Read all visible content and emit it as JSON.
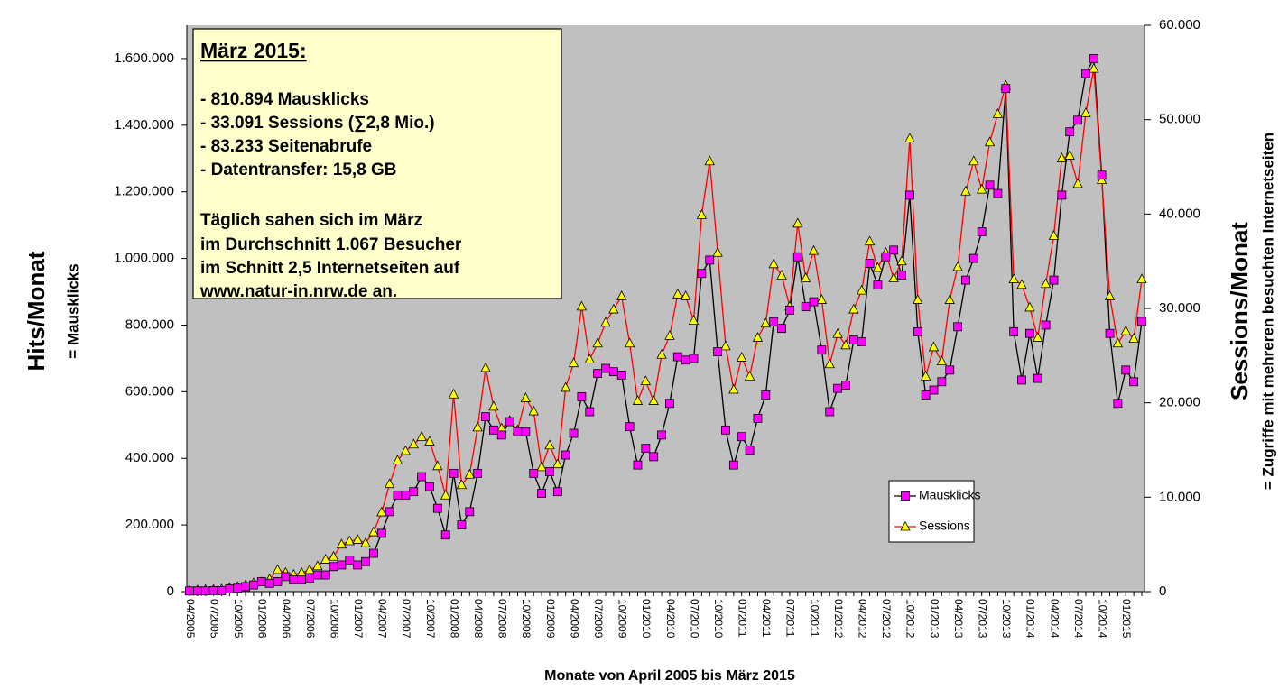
{
  "chart_data": {
    "type": "line",
    "annotation": {
      "title": "März 2015:",
      "lines": [
        "- 810.894 Mausklicks",
        "- 33.091 Sessions (∑2,8 Mio.)",
        "- 83.233 Seitenabrufe",
        "- Datentransfer: 15,8 GB",
        "Täglich sahen sich im März",
        "im Durchschnitt 1.067 Besucher",
        "im Schnitt 2,5 Internetseiten auf",
        "www.natur-in.nrw.de an."
      ]
    },
    "ylabel": "Hits/Monat",
    "ylabel_sub": "= Mausklicks",
    "y2label": "Sessions/Monat",
    "y2label_sub": "= Zugriffe  mit mehreren besuchten Internetseiten",
    "xlabel": "Monate von April 2005 bis März 2015",
    "categories": [
      "04/2005",
      null,
      null,
      "07/2005",
      null,
      null,
      "10/2005",
      null,
      null,
      "01/2006",
      null,
      null,
      "04/2006",
      null,
      null,
      "07/2006",
      null,
      null,
      "10/2006",
      null,
      null,
      "01/2007",
      null,
      null,
      "04/2007",
      null,
      null,
      "07/2007",
      null,
      null,
      "10/2007",
      null,
      null,
      "01/2008",
      null,
      null,
      "04/2008",
      null,
      null,
      "07/2008",
      null,
      null,
      "10/2008",
      null,
      null,
      "01/2009",
      null,
      null,
      "04/2009",
      null,
      null,
      "07/2009",
      null,
      null,
      "10/2009",
      null,
      null,
      "01/2010",
      null,
      null,
      "04/2010",
      null,
      null,
      "07/2010",
      null,
      null,
      "10/2010",
      null,
      null,
      "01/2011",
      null,
      null,
      "04/2011",
      null,
      null,
      "07/2011",
      null,
      null,
      "10/2011",
      null,
      null,
      "01/2012",
      null,
      null,
      "04/2012",
      null,
      null,
      "07/2012",
      null,
      null,
      "10/2012",
      null,
      null,
      "01/2013",
      null,
      null,
      "04/2013",
      null,
      null,
      "07/2013",
      null,
      null,
      "10/2013",
      null,
      null,
      "01/2014",
      null,
      null,
      "04/2014",
      null,
      null,
      "07/2014",
      null,
      null,
      "10/2014",
      null,
      null,
      "01/2015",
      null,
      null
    ],
    "series": [
      {
        "name": "Mausklicks",
        "color": "#000000",
        "marker_color": "#ff00ff",
        "values": [
          2000,
          2000,
          2000,
          3000,
          3000,
          8000,
          10000,
          15000,
          20000,
          30000,
          25000,
          30000,
          45000,
          35000,
          35000,
          40000,
          50000,
          50000,
          75000,
          80000,
          95000,
          80000,
          90000,
          115000,
          175000,
          240000,
          290000,
          290000,
          300000,
          345000,
          315000,
          250000,
          170000,
          355000,
          200000,
          240000,
          355000,
          525000,
          485000,
          470000,
          510000,
          480000,
          480000,
          355000,
          295000,
          360000,
          300000,
          410000,
          475000,
          585000,
          540000,
          655000,
          670000,
          660000,
          650000,
          495000,
          380000,
          430000,
          405000,
          470000,
          565000,
          705000,
          695000,
          700000,
          955000,
          995000,
          720000,
          485000,
          380000,
          465000,
          425000,
          520000,
          590000,
          810000,
          790000,
          845000,
          1005000,
          855000,
          870000,
          725000,
          540000,
          610000,
          620000,
          755000,
          750000,
          985000,
          920000,
          1005000,
          1025000,
          950000,
          1190000,
          780000,
          590000,
          605000,
          630000,
          665000,
          795000,
          935000,
          1000000,
          1080000,
          1220000,
          1195000,
          1510000,
          780000,
          635000,
          775000,
          640000,
          800000,
          935000,
          1190000,
          1380000,
          1415000,
          1555000,
          1600000,
          1250000,
          775000,
          565000,
          665000,
          630000,
          810894
        ]
      },
      {
        "name": "Sessions",
        "color": "#ff0000",
        "marker_color": "#ffff00",
        "axis": "y2",
        "values": [
          100,
          150,
          200,
          200,
          250,
          400,
          500,
          700,
          900,
          1000,
          1300,
          2300,
          2000,
          1800,
          2000,
          2300,
          2700,
          3400,
          3700,
          5000,
          5350,
          5500,
          5150,
          6300,
          8400,
          11400,
          13900,
          14900,
          15600,
          16400,
          15900,
          13300,
          10200,
          20900,
          11300,
          12400,
          17400,
          23700,
          19600,
          17300,
          18100,
          17100,
          20500,
          19100,
          13200,
          15500,
          13500,
          21600,
          24200,
          30200,
          24600,
          26300,
          28500,
          29900,
          31300,
          26300,
          20200,
          22300,
          20200,
          25100,
          27100,
          31500,
          31300,
          28700,
          39900,
          45600,
          35900,
          26000,
          21400,
          24800,
          22800,
          26900,
          28400,
          34700,
          33500,
          30200,
          39000,
          33200,
          36100,
          30900,
          24100,
          27300,
          26100,
          29900,
          31900,
          37100,
          34300,
          35900,
          33200,
          35000,
          48000,
          30900,
          22800,
          25900,
          24400,
          30900,
          34400,
          42400,
          45600,
          42600,
          47600,
          50600,
          53600,
          33100,
          32500,
          30100,
          26900,
          32600,
          37700,
          45900,
          46200,
          43200,
          50700,
          55400,
          43600,
          31300,
          26300,
          27600,
          26800,
          33091
        ]
      }
    ],
    "ylim": [
      0,
      1700000
    ],
    "yticks": [
      0,
      {
        "value": 200000,
        "label": "200.000"
      },
      {
        "value": 400000,
        "label": "400.000"
      },
      {
        "value": 600000,
        "label": "600.000"
      },
      {
        "value": 800000,
        "label": "800.000"
      },
      {
        "value": 1000000,
        "label": "1.000.000"
      },
      {
        "value": 1200000,
        "label": "1.200.000"
      },
      {
        "value": 1400000,
        "label": "1.400.000"
      },
      {
        "value": 1600000,
        "label": "1.600.000"
      }
    ],
    "y2lim": [
      0,
      60000
    ],
    "y2ticks": [
      0,
      {
        "value": 10000,
        "label": "10.000"
      },
      {
        "value": 20000,
        "label": "20.000"
      },
      {
        "value": 30000,
        "label": "30.000"
      },
      {
        "value": 40000,
        "label": "40.000"
      },
      {
        "value": 50000,
        "label": "50.000"
      },
      {
        "value": 60000,
        "label": "60.000"
      }
    ],
    "plot_background": "#c0c0c0",
    "legend": "lower right"
  }
}
